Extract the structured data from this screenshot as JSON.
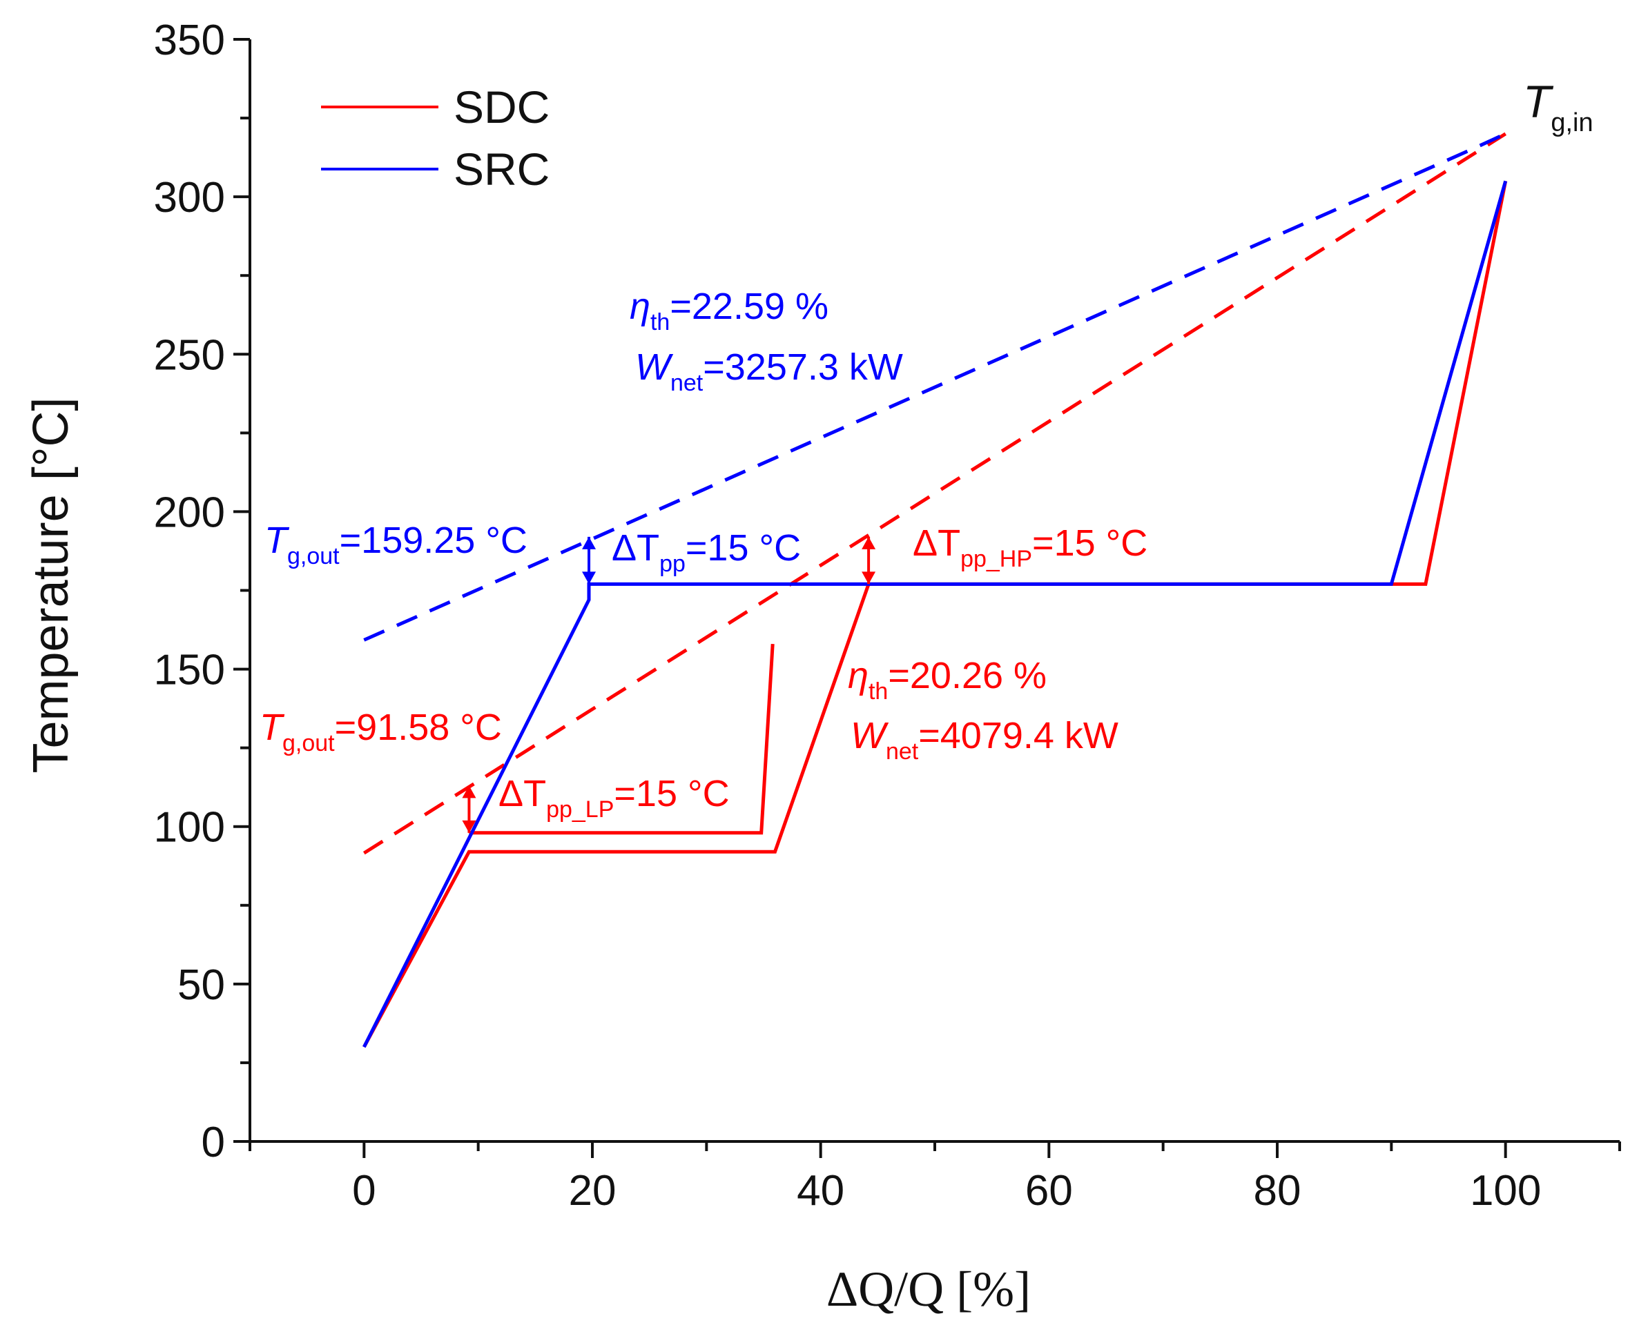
{
  "chart_data": {
    "type": "line",
    "xlabel": "ΔQ/Q [%]",
    "ylabel": "Temperature [°C]",
    "xlim": [
      -10,
      110
    ],
    "ylim": [
      0,
      350
    ],
    "x_ticks": [
      0,
      20,
      40,
      60,
      80,
      100
    ],
    "y_ticks": [
      0,
      50,
      100,
      150,
      200,
      250,
      300,
      350
    ],
    "grid": false,
    "legend": {
      "position": "top-left",
      "entries": [
        {
          "name": "SDC",
          "color": "#ff0000"
        },
        {
          "name": "SRC",
          "color": "#0000ff"
        }
      ]
    },
    "series": [
      {
        "name": "SDC",
        "kind": "working fluid",
        "color": "#ff0000",
        "style": "solid",
        "points": [
          [
            0,
            30
          ],
          [
            9.2,
            92
          ],
          [
            36,
            92
          ],
          [
            44.2,
            177
          ],
          [
            93,
            177
          ],
          [
            100,
            305
          ]
        ]
      },
      {
        "name": "SDC",
        "kind": "working fluid LP",
        "color": "#ff0000",
        "style": "solid",
        "points": [
          [
            9.2,
            98
          ],
          [
            34.8,
            98
          ],
          [
            35.8,
            158
          ]
        ]
      },
      {
        "name": "SDC",
        "kind": "heat source",
        "color": "#ff0000",
        "style": "dashed",
        "points": [
          [
            0,
            91.58
          ],
          [
            100,
            320
          ]
        ]
      },
      {
        "name": "SRC",
        "kind": "working fluid",
        "color": "#0000ff",
        "style": "solid",
        "points": [
          [
            0,
            30
          ],
          [
            19.7,
            172
          ],
          [
            19.7,
            177
          ],
          [
            90,
            177
          ],
          [
            100,
            305
          ]
        ]
      },
      {
        "name": "SRC",
        "kind": "heat source",
        "color": "#0000ff",
        "style": "dashed",
        "points": [
          [
            0,
            159.25
          ],
          [
            97,
            315
          ],
          [
            100,
            320
          ]
        ]
      }
    ],
    "annotations": {
      "tgin": {
        "main": "T",
        "sub": "g,in"
      },
      "src_eta": {
        "sym": "η",
        "sub": "th",
        "rest": "=22.59 %",
        "color": "#0000ff"
      },
      "src_wnet": {
        "sym": "W",
        "sub": "net",
        "rest": "=3257.3 kW",
        "color": "#0000ff"
      },
      "src_tgout": {
        "sym": "T",
        "sub": "g,out",
        "rest": "=159.25 °C",
        "color": "#0000ff"
      },
      "src_dtpp": {
        "sym": "ΔT",
        "sub": "pp",
        "rest": "=15 °C",
        "color": "#0000ff"
      },
      "sdc_dtpp_hp": {
        "sym": "ΔT",
        "sub": "pp_HP",
        "rest": "=15 °C",
        "color": "#ff0000"
      },
      "sdc_eta": {
        "sym": "η",
        "sub": "th",
        "rest": "=20.26 %",
        "color": "#ff0000"
      },
      "sdc_wnet": {
        "sym": "W",
        "sub": "net",
        "rest": "=4079.4 kW",
        "color": "#ff0000"
      },
      "sdc_tgout": {
        "sym": "T",
        "sub": "g,out",
        "rest": "=91.58 °C",
        "color": "#ff0000"
      },
      "sdc_dtpp_lp": {
        "sym": "ΔT",
        "sub": "pp_LP",
        "rest": "=15 °C",
        "color": "#ff0000"
      }
    },
    "pinch_markers": [
      {
        "x": 19.7,
        "y_low": 177,
        "y_high": 192,
        "color": "#0000ff"
      },
      {
        "x": 44.2,
        "y_low": 177,
        "y_high": 192,
        "color": "#ff0000"
      },
      {
        "x": 9.2,
        "y_low": 98,
        "y_high": 113,
        "color": "#ff0000"
      }
    ]
  }
}
